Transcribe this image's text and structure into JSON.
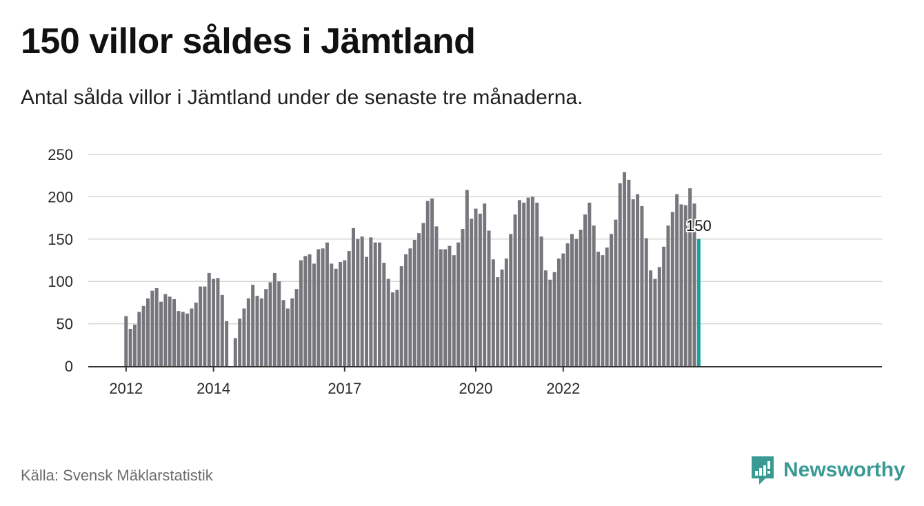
{
  "title": "150 villor såldes i Jämtland",
  "subtitle": "Antal sålda villor i Jämtland under de senaste tre månaderna.",
  "source": "Källa: Svensk Mäklarstatistik",
  "brand": {
    "name": "Newsworthy",
    "icon": "newsworthy-logo-icon",
    "color": "#3a9a93"
  },
  "chart_data": {
    "type": "bar",
    "title": "150 villor såldes i Jämtland",
    "subtitle": "Antal sålda villor i Jämtland under de senaste tre månaderna.",
    "xlabel": "",
    "ylabel": "",
    "ylim": [
      0,
      250
    ],
    "yticks": [
      "0",
      "50",
      "100",
      "150",
      "200",
      "250"
    ],
    "xtick_labels": [
      {
        "label": "2012",
        "index": 0
      },
      {
        "label": "2014",
        "index": 20
      },
      {
        "label": "2017",
        "index": 50
      },
      {
        "label": "2020",
        "index": 80
      },
      {
        "label": "2022",
        "index": 100
      }
    ],
    "grid": true,
    "bar_color": "#77767c",
    "highlight_color": "#17a29a",
    "highlight_label": "150",
    "values": [
      59,
      44,
      49,
      64,
      71,
      80,
      89,
      92,
      76,
      85,
      82,
      79,
      65,
      64,
      62,
      68,
      75,
      94,
      94,
      110,
      103,
      104,
      84,
      53,
      null,
      33,
      56,
      68,
      80,
      96,
      83,
      80,
      91,
      99,
      110,
      100,
      78,
      68,
      80,
      91,
      125,
      130,
      132,
      121,
      138,
      139,
      146,
      121,
      115,
      123,
      125,
      136,
      163,
      150,
      153,
      129,
      152,
      146,
      146,
      122,
      103,
      87,
      90,
      118,
      132,
      139,
      149,
      157,
      169,
      195,
      198,
      165,
      138,
      138,
      142,
      131,
      146,
      162,
      208,
      174,
      186,
      180,
      192,
      160,
      126,
      105,
      114,
      127,
      156,
      179,
      196,
      193,
      199,
      200,
      193,
      153,
      113,
      102,
      111,
      127,
      133,
      145,
      156,
      150,
      161,
      179,
      193,
      166,
      135,
      131,
      140,
      156,
      173,
      216,
      229,
      220,
      197,
      203,
      189,
      151,
      113,
      103,
      117,
      141,
      166,
      182,
      203,
      191,
      190,
      210,
      192,
      150
    ]
  }
}
